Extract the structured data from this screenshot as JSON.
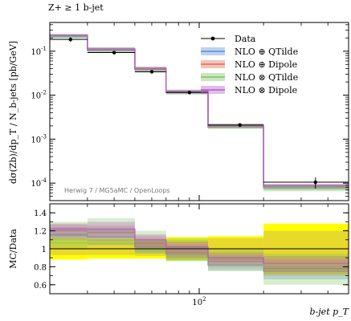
{
  "chart_data": {
    "type": "line",
    "title": "Z+ ≥ 1 b-jet",
    "xlabel": "b-jet p_T",
    "ylabel": "dσ(Zb)/dp_T / N_b-jets [pb/GeV]",
    "ratio_ylabel": "MC/Data",
    "watermark": "Herwig 7 / MG5aMC / OpenLoops",
    "xscale": "log",
    "yscale": "log",
    "xlim": [
      20,
      500
    ],
    "ylim": [
      4e-05,
      0.45
    ],
    "ratio_ylim": [
      0.5,
      1.5
    ],
    "x_tick_labels": [
      "10^2"
    ],
    "y_tick_labels": [
      "10^-4",
      "10^-3",
      "10^-2",
      "10^-1"
    ],
    "ratio_tick_labels": [
      "0.6",
      "0.8",
      "1",
      "1.2",
      "1.4"
    ],
    "bin_edges": [
      20,
      30,
      50,
      70,
      110,
      200,
      500
    ],
    "legend_position": "top-right",
    "data": {
      "name": "Data",
      "x": [
        25,
        40,
        60,
        90,
        155,
        350
      ],
      "y": [
        0.185,
        0.093,
        0.034,
        0.0115,
        0.0021,
        0.000105
      ],
      "yerr": [
        0.02,
        0.008,
        0.003,
        0.001,
        0.0002,
        3e-05
      ],
      "ratio_band_stat": [
        [
          0.93,
          1.07
        ],
        [
          0.93,
          1.07
        ],
        [
          0.92,
          1.08
        ],
        [
          0.9,
          1.1
        ],
        [
          0.88,
          1.12
        ],
        [
          0.85,
          1.2
        ]
      ],
      "ratio_band_total": [
        [
          0.88,
          1.12
        ],
        [
          0.89,
          1.11
        ],
        [
          0.89,
          1.11
        ],
        [
          0.87,
          1.13
        ],
        [
          0.86,
          1.14
        ],
        [
          0.72,
          1.28
        ]
      ],
      "color": "#000000"
    },
    "series": [
      {
        "name": "NLO ⊕ QTilde",
        "color": "#5b8ed6",
        "values": [
          0.215,
          0.105,
          0.038,
          0.0115,
          0.0019,
          7.8e-05
        ],
        "band": [
          [
            0.2,
            0.235
          ],
          [
            0.096,
            0.114
          ],
          [
            0.035,
            0.041
          ],
          [
            0.0106,
            0.0124
          ],
          [
            0.00175,
            0.00205
          ],
          [
            7e-05,
            8.6e-05
          ]
        ],
        "ratio": [
          1.16,
          1.13,
          1.02,
          0.94,
          0.82,
          0.75
        ],
        "ratio_band": [
          [
            1.06,
            1.24
          ],
          [
            1.04,
            1.22
          ],
          [
            0.95,
            1.1
          ],
          [
            0.87,
            1.02
          ],
          [
            0.76,
            0.9
          ],
          [
            0.66,
            0.84
          ]
        ]
      },
      {
        "name": "NLO ⊕ Dipole",
        "color": "#e06a55",
        "values": [
          0.225,
          0.11,
          0.039,
          0.0118,
          0.00195,
          8.2e-05
        ],
        "band": [
          [
            0.21,
            0.24
          ],
          [
            0.1,
            0.12
          ],
          [
            0.036,
            0.042
          ],
          [
            0.0109,
            0.0127
          ],
          [
            0.0018,
            0.0021
          ],
          [
            7.4e-05,
            9e-05
          ]
        ],
        "ratio": [
          1.2,
          1.18,
          1.06,
          0.96,
          0.86,
          0.78
        ],
        "ratio_band": [
          [
            1.1,
            1.27
          ],
          [
            1.08,
            1.26
          ],
          [
            0.98,
            1.14
          ],
          [
            0.89,
            1.05
          ],
          [
            0.79,
            0.93
          ],
          [
            0.7,
            0.88
          ]
        ]
      },
      {
        "name": "NLO ⊗ QTilde",
        "color": "#7dc35a",
        "values": [
          0.22,
          0.108,
          0.04,
          0.0121,
          0.002,
          8e-05
        ],
        "band": [
          [
            0.195,
            0.245
          ],
          [
            0.092,
            0.124
          ],
          [
            0.034,
            0.045
          ],
          [
            0.0103,
            0.0135
          ],
          [
            0.0017,
            0.0023
          ],
          [
            6.5e-05,
            9.5e-05
          ]
        ],
        "ratio": [
          1.15,
          1.2,
          1.08,
          1.0,
          0.88,
          0.8
        ],
        "ratio_band": [
          [
            1.0,
            1.3
          ],
          [
            1.05,
            1.34
          ],
          [
            0.95,
            1.2
          ],
          [
            0.86,
            1.12
          ],
          [
            0.75,
            1.0
          ],
          [
            0.6,
            0.95
          ]
        ]
      },
      {
        "name": "NLO ⊗ Dipole",
        "color": "#b35cc8",
        "values": [
          0.23,
          0.112,
          0.041,
          0.0123,
          0.00205,
          8.8e-05
        ],
        "band": [
          [
            0.215,
            0.245
          ],
          [
            0.104,
            0.12
          ],
          [
            0.038,
            0.044
          ],
          [
            0.0114,
            0.0132
          ],
          [
            0.0019,
            0.0022
          ],
          [
            8e-05,
            9.6e-05
          ]
        ],
        "ratio": [
          1.22,
          1.22,
          1.1,
          1.02,
          0.9,
          0.84
        ],
        "ratio_band": [
          [
            1.13,
            1.28
          ],
          [
            1.13,
            1.3
          ],
          [
            1.02,
            1.16
          ],
          [
            0.95,
            1.08
          ],
          [
            0.83,
            0.96
          ],
          [
            0.76,
            0.92
          ]
        ]
      }
    ]
  }
}
